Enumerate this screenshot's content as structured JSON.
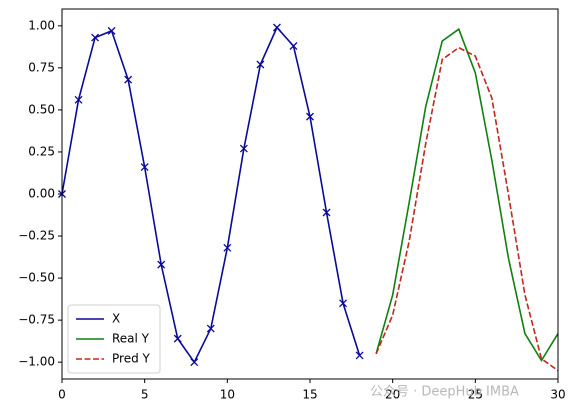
{
  "chart_data": {
    "type": "line",
    "xlim": [
      0,
      30
    ],
    "xticks": [
      0,
      5,
      10,
      15,
      20,
      25,
      30
    ],
    "ylim": [
      -1.1,
      1.1
    ],
    "yticks": [
      {
        "value": -1,
        "label": "−1.00"
      },
      {
        "value": -0.75,
        "label": "−0.75"
      },
      {
        "value": -0.5,
        "label": "−0.50"
      },
      {
        "value": -0.25,
        "label": "−0.25"
      },
      {
        "value": 0,
        "label": "0.00"
      },
      {
        "value": 0.25,
        "label": "0.25"
      },
      {
        "value": 0.5,
        "label": "0.50"
      },
      {
        "value": 0.75,
        "label": "0.75"
      },
      {
        "value": 1,
        "label": "1.00"
      }
    ],
    "legend": "lower left",
    "series": [
      {
        "name": "X",
        "color": "#0a0a9a",
        "style": "solid",
        "marker": "x",
        "x": [
          0,
          1,
          2,
          3,
          4,
          5,
          6,
          7,
          8,
          9,
          10,
          11,
          12,
          13,
          14,
          15,
          16,
          17,
          18
        ],
        "values": [
          0,
          0.56,
          0.93,
          0.97,
          0.68,
          0.16,
          -0.42,
          -0.86,
          -1.0,
          -0.8,
          -0.32,
          0.27,
          0.77,
          0.99,
          0.88,
          0.46,
          -0.11,
          -0.65,
          -0.96
        ]
      },
      {
        "name": "Real Y",
        "color": "#108010",
        "style": "solid",
        "x": [
          19,
          20,
          21,
          22,
          23,
          24,
          25,
          26,
          27,
          28,
          29,
          30
        ],
        "values": [
          -0.95,
          -0.6,
          -0.05,
          0.52,
          0.91,
          0.98,
          0.72,
          0.2,
          -0.38,
          -0.83,
          -0.99,
          -0.83
        ]
      },
      {
        "name": "Pred Y",
        "color": "#c0281e",
        "style": "dashed",
        "x": [
          19,
          20,
          21,
          22,
          23,
          24,
          25,
          26,
          27,
          28,
          29,
          30
        ],
        "values": [
          -0.95,
          -0.72,
          -0.28,
          0.3,
          0.8,
          0.87,
          0.82,
          0.57,
          0.0,
          -0.6,
          -0.98,
          -1.05
        ]
      }
    ],
    "watermark": "公众号 · DeepHub IMBA"
  }
}
